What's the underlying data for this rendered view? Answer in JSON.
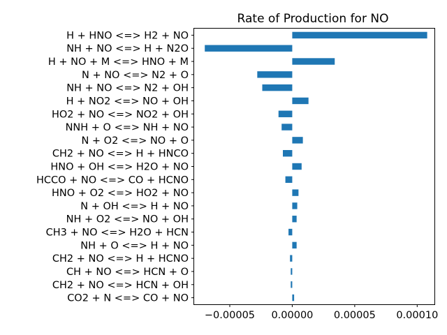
{
  "chart_data": {
    "type": "bar",
    "orientation": "horizontal",
    "title": "Rate of Production for NO",
    "xlabel": "",
    "ylabel": "",
    "bar_color": "#1f77b4",
    "xlim": [
      -7.85e-05,
      0.0001138
    ],
    "xticks": [
      -5e-05,
      0.0,
      5e-05,
      0.0001
    ],
    "xtick_labels": [
      "−0.00005",
      "0.00000",
      "0.00005",
      "0.00010"
    ],
    "grid": false,
    "categories": [
      "H + HNO <=> H2 + NO",
      "NH + NO <=> H + N2O",
      "H + NO + M <=> HNO + M",
      "N + NO <=> N2 + O",
      "NH + NO <=> N2 + OH",
      "H + NO2 <=> NO + OH",
      "HO2 + NO <=> NO2 + OH",
      "NNH + O <=> NH + NO",
      "N + O2 <=> NO + O",
      "CH2 + NO <=> H + HNCO",
      "HNO + OH <=> H2O + NO",
      "HCCO + NO <=> CO + HCNO",
      "HNO + O2 <=> HO2 + NO",
      "N + OH <=> H + NO",
      "NH + O2 <=> NO + OH",
      "CH3 + NO <=> H2O + HCN",
      "NH + O <=> H + NO",
      "CH2 + NO <=> H + HCNO",
      "CH + NO <=> HCN + O",
      "CH2 + NO <=> HCN + OH",
      "CO2 + N <=> CO + NO"
    ],
    "values": [
      0.000108,
      -7e-05,
      3.4e-05,
      -2.8e-05,
      -2.4e-05,
      1.3e-05,
      -1.1e-05,
      -8.5e-06,
      8.5e-06,
      -7.5e-06,
      7.5e-06,
      -5.5e-06,
      5e-06,
      4e-06,
      3.5e-06,
      -3e-06,
      3.5e-06,
      -1.8e-06,
      -1.2e-06,
      -1.2e-06,
      1.5e-06
    ]
  }
}
